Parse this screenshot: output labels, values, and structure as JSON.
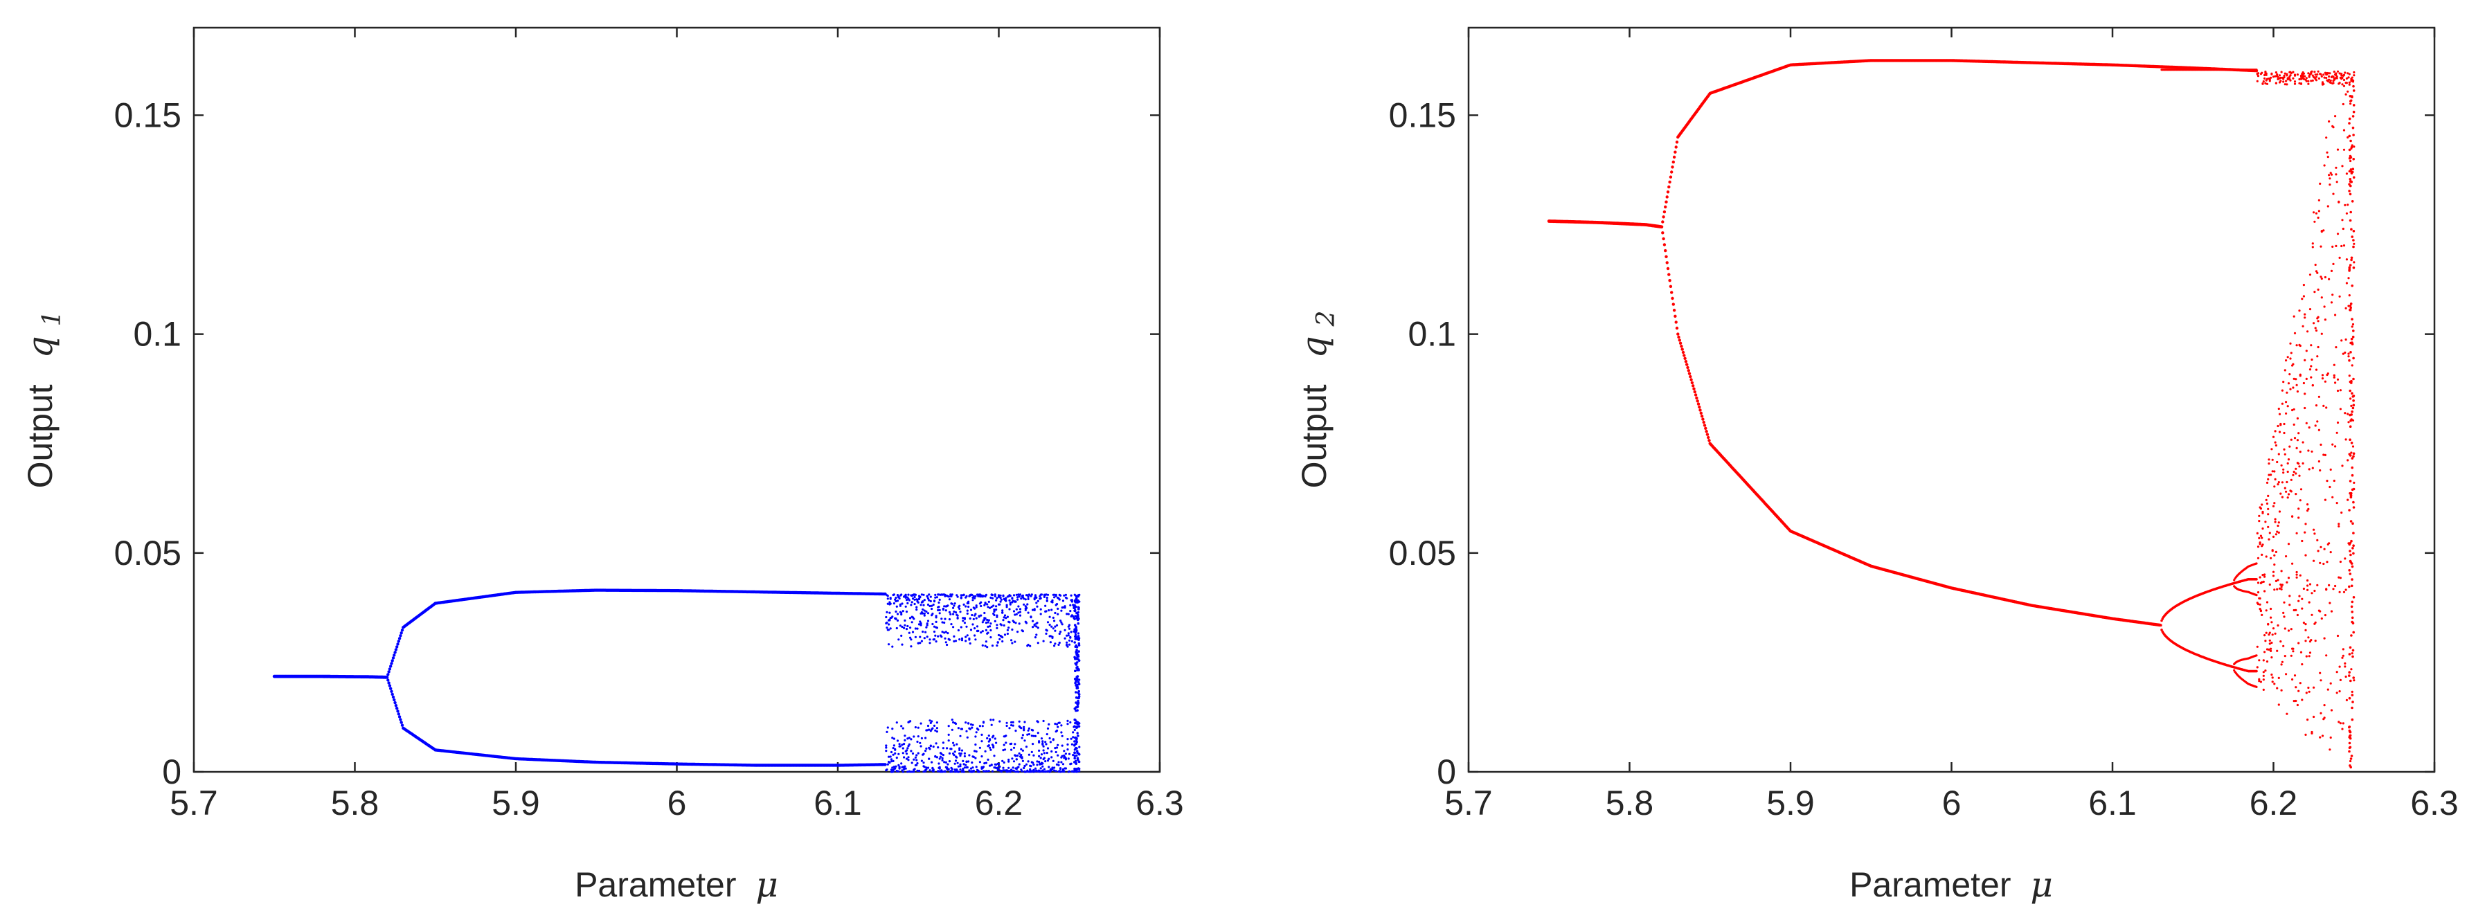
{
  "chart_data": [
    {
      "type": "scatter",
      "title": "",
      "xlabel": "Parameter",
      "xlabel_symbol": "μ",
      "ylabel": "Output",
      "ylabel_symbol": "q",
      "ylabel_subscript": "1",
      "xlim": [
        5.7,
        6.3
      ],
      "ylim": [
        0,
        0.17
      ],
      "xticks": [
        "5.7",
        "5.8",
        "5.9",
        "6",
        "6.1",
        "6.2",
        "6.3"
      ],
      "yticks": [
        "0",
        "0.05",
        "0.1",
        "0.15"
      ],
      "grid": false,
      "color": "#0000ff",
      "bifurcation": {
        "mu_start": 5.75,
        "mu_end": 6.25,
        "fixed_point": 0.0218,
        "period_doubling_mu": 5.82,
        "upper_branch_max": 0.0415,
        "lower_branch_min": 0.0015,
        "chaos_onset_mu": 6.13,
        "chaos_band": [
          0.0,
          0.0405
        ]
      },
      "series": [
        {
          "x": [
            5.75,
            5.78,
            5.81,
            5.82,
            5.83,
            5.85,
            5.9,
            5.95,
            6.0,
            6.05,
            6.1,
            6.15,
            6.2,
            6.25
          ],
          "y": [
            0.0218,
            0.0218,
            0.0217,
            0.0216,
            0.033,
            0.0385,
            0.041,
            0.0415,
            0.0414,
            0.0411,
            0.0408,
            0.0405,
            0.0403,
            0.0403
          ]
        },
        {
          "x": [
            5.82,
            5.83,
            5.85,
            5.9,
            5.95,
            6.0,
            6.05,
            6.1,
            6.15,
            6.2,
            6.25
          ],
          "y": [
            0.0216,
            0.01,
            0.005,
            0.003,
            0.0022,
            0.0018,
            0.0015,
            0.0015,
            0.0018,
            0.0025,
            0.002
          ]
        }
      ]
    },
    {
      "type": "scatter",
      "title": "",
      "xlabel": "Parameter",
      "xlabel_symbol": "μ",
      "ylabel": "Output",
      "ylabel_symbol": "q",
      "ylabel_subscript": "2",
      "xlim": [
        5.7,
        6.3
      ],
      "ylim": [
        0,
        0.17
      ],
      "xticks": [
        "5.7",
        "5.8",
        "5.9",
        "6",
        "6.1",
        "6.2",
        "6.3"
      ],
      "yticks": [
        "0",
        "0.05",
        "0.1",
        "0.15"
      ],
      "grid": false,
      "color": "#ff0000",
      "bifurcation": {
        "mu_start": 5.75,
        "mu_end": 6.25,
        "fixed_point": 0.1258,
        "period_doubling_mu": 5.82,
        "upper_branch_max": 0.1625,
        "lower_branch_at_6_13": 0.0335,
        "second_doubling_mu": 6.13,
        "third_doubling_mu": 6.175,
        "chaos_onset_mu": 6.19,
        "chaos_band": [
          0.0,
          0.16
        ]
      },
      "series": [
        {
          "x": [
            5.75,
            5.78,
            5.81,
            5.82,
            5.83,
            5.85,
            5.9,
            5.95,
            6.0,
            6.05,
            6.1,
            6.15,
            6.2,
            6.25
          ],
          "y": [
            0.1258,
            0.1255,
            0.125,
            0.1245,
            0.145,
            0.155,
            0.1615,
            0.1625,
            0.1625,
            0.162,
            0.1615,
            0.1608,
            0.16,
            0.16
          ]
        },
        {
          "x": [
            5.82,
            5.83,
            5.85,
            5.9,
            5.95,
            6.0,
            6.05,
            6.1,
            6.13
          ],
          "y": [
            0.1245,
            0.1,
            0.075,
            0.055,
            0.047,
            0.042,
            0.038,
            0.035,
            0.0335
          ]
        }
      ]
    }
  ]
}
